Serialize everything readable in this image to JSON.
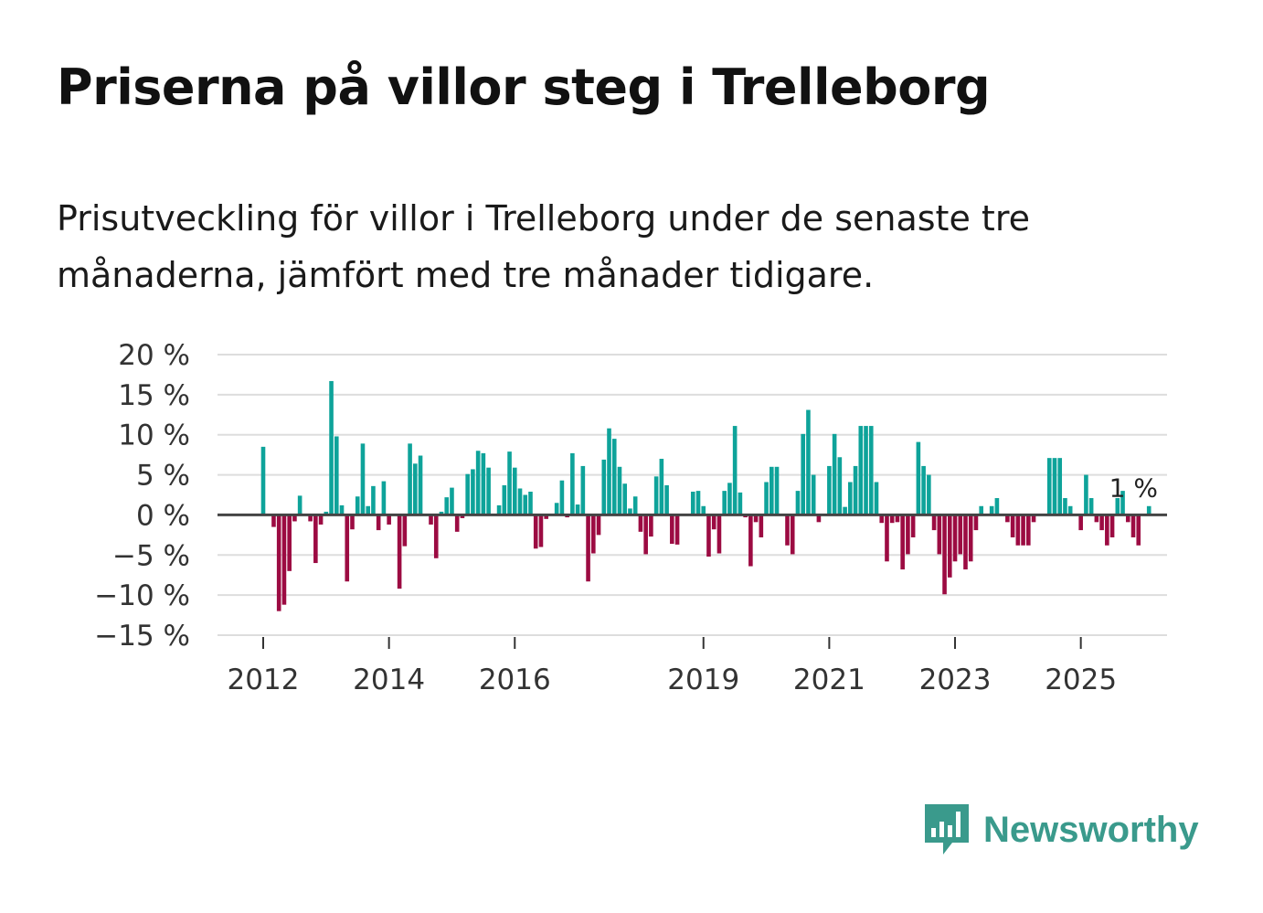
{
  "header": {
    "title": "Priserna på villor steg i Trelleborg",
    "subtitle": "Prisutveckling för villor i Trelleborg under de senaste tre månaderna, jämfört med tre månader tidigare."
  },
  "brand": {
    "name": "Newsworthy",
    "icon": "newsworthy-logo-icon",
    "color": "#3a9a8c"
  },
  "colors": {
    "positive": "#0ea39a",
    "negative": "#9c0b42",
    "zero_line": "#444444",
    "grid": "#dddddd"
  },
  "chart_data": {
    "type": "bar",
    "title": "Priserna på villor steg i Trelleborg",
    "xlabel": "",
    "ylabel": "",
    "ylim": [
      -15,
      20
    ],
    "y_ticks": [
      20,
      15,
      10,
      5,
      0,
      -5,
      -10,
      -15
    ],
    "y_tick_labels": [
      "20 %",
      "15 %",
      "10 %",
      "5 %",
      "0 %",
      "−5 %",
      "−10 %",
      "−15 %"
    ],
    "x_tick_labels": [
      {
        "label": "2012",
        "year": 2012
      },
      {
        "label": "2014",
        "year": 2014
      },
      {
        "label": "2016",
        "year": 2016
      },
      {
        "label": "2019",
        "year": 2019
      },
      {
        "label": "2021",
        "year": 2021
      },
      {
        "label": "2023",
        "year": 2023
      },
      {
        "label": "2025",
        "year": 2025
      }
    ],
    "start": "2012-01",
    "end": "2025-08",
    "unit": "%",
    "annotation": {
      "text": "1 %",
      "index": 165
    },
    "values": [
      8.5,
      0,
      -1.5,
      -12,
      -11.2,
      -7,
      -0.8,
      2.4,
      0,
      -0.8,
      -6,
      -1.2,
      0.4,
      16.7,
      9.8,
      1.2,
      -8.3,
      -1.8,
      2.3,
      8.9,
      1.1,
      3.6,
      -1.9,
      4.2,
      -1.2,
      0,
      -9.2,
      -3.9,
      8.9,
      6.4,
      7.4,
      0,
      -1.2,
      -5.4,
      0.4,
      2.2,
      3.4,
      -2.1,
      -0.4,
      5.1,
      5.7,
      8,
      7.7,
      5.9,
      0,
      1.2,
      3.7,
      7.9,
      5.9,
      3.3,
      2.5,
      2.9,
      -4.2,
      -4,
      -0.5,
      0,
      1.5,
      4.3,
      -0.3,
      7.7,
      1.3,
      6.1,
      -8.3,
      -4.8,
      -2.5,
      6.9,
      10.8,
      9.5,
      6,
      3.9,
      0.8,
      2.3,
      -2.1,
      -4.9,
      -2.7,
      4.8,
      7,
      3.7,
      -3.6,
      -3.7,
      0,
      0,
      2.9,
      3,
      1.1,
      -5.2,
      -1.8,
      -4.8,
      3,
      4,
      11.1,
      2.8,
      -0.3,
      -6.4,
      -0.9,
      -2.8,
      4.1,
      6,
      6,
      0,
      -3.8,
      -4.9,
      3,
      10.1,
      13.1,
      5,
      -0.9,
      0,
      6.1,
      10.1,
      7.2,
      1,
      4.1,
      6.1,
      11.1,
      11.1,
      11.1,
      4.1,
      -1,
      -5.8,
      -1,
      -0.9,
      -6.8,
      -4.9,
      -2.8,
      9.1,
      6.1,
      5,
      -1.9,
      -4.9,
      -9.9,
      -7.8,
      -5.8,
      -4.9,
      -6.8,
      -5.8,
      -1.9,
      1.1,
      0,
      1.1,
      2.1,
      0,
      -0.9,
      -2.8,
      -3.8,
      -3.8,
      -3.8,
      -0.9,
      0,
      0,
      7.1,
      7.1,
      7.1,
      2.1,
      1.1,
      0,
      -1.9,
      5,
      2.1,
      -0.9,
      -1.9,
      -3.8,
      -2.8,
      2.1,
      3,
      -0.9,
      -2.8,
      -3.8,
      0,
      1.1
    ]
  }
}
